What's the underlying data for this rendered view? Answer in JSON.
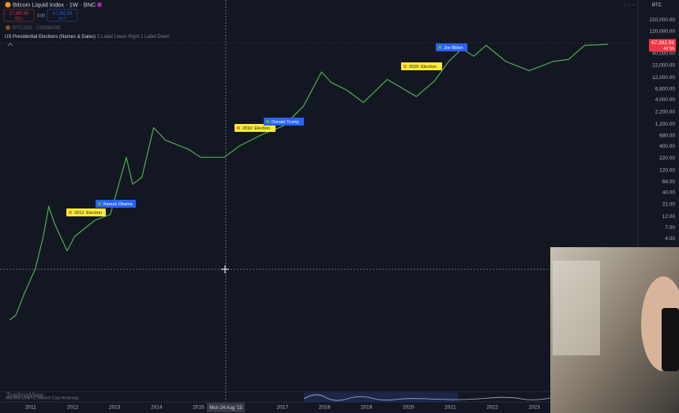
{
  "header": {
    "symbol": "Bitcoin Liquid Index · 1W · BNC",
    "sell_price": "67,382.68",
    "sell_label": "SELL",
    "spread": "0.00",
    "buy_price": "67,382.68",
    "buy_label": "BUY",
    "overlay_symbol": "BTCUSD · COINBASE",
    "indicator": "US Presidential Elections (Names & Dates)",
    "indicator_settings": "2 Label Lower Right 2 Label Down",
    "currency": "BTC"
  },
  "chart_data": {
    "type": "line",
    "log_scale": true,
    "grid": false,
    "x": [
      2010.5,
      2010.65,
      2010.83,
      2011.11,
      2011.3,
      2011.43,
      2011.58,
      2011.87,
      2012.05,
      2012.53,
      2012.9,
      2013.28,
      2013.43,
      2013.65,
      2013.93,
      2014.21,
      2014.77,
      2015.05,
      2015.61,
      2015.99,
      2016.55,
      2017.03,
      2017.5,
      2017.93,
      2018.16,
      2018.53,
      2018.93,
      2019.5,
      2019.87,
      2020.19,
      2020.62,
      2020.96,
      2021.28,
      2021.56,
      2021.85,
      2022.32,
      2022.88,
      2023.45,
      2023.82,
      2024.2,
      2024.76
    ],
    "series": [
      {
        "name": "Bitcoin Liquid Index",
        "color": "#4caf50",
        "values": [
          0.07,
          0.09,
          0.24,
          0.9,
          4.5,
          20,
          8.1,
          2.2,
          4.5,
          10,
          13.5,
          230,
          60,
          85,
          1000,
          540,
          340,
          230,
          230,
          410,
          740,
          1100,
          2900,
          16000,
          9500,
          6500,
          3500,
          11000,
          7000,
          4700,
          10200,
          27000,
          51000,
          35000,
          60000,
          27000,
          17000,
          27000,
          30000,
          60000,
          63000
        ]
      }
    ],
    "xlim": [
      2010.27,
      2025.47
    ],
    "xticks": [
      2011,
      2012,
      2013,
      2014,
      2015,
      2017,
      2018,
      2019,
      2020,
      2021,
      2022,
      2023
    ],
    "ylim": [
      0.01,
      330000
    ],
    "yticks": [
      {
        "value": 210000,
        "label": "210,000.00"
      },
      {
        "value": 120000,
        "label": "120,000.00"
      },
      {
        "value": 40000,
        "label": "40,000.00"
      },
      {
        "value": 22000,
        "label": "22,000.00"
      },
      {
        "value": 12000,
        "label": "12,000.00"
      },
      {
        "value": 6800,
        "label": "6,800.00"
      },
      {
        "value": 4000,
        "label": "4,000.00"
      },
      {
        "value": 2200,
        "label": "2,200.00"
      },
      {
        "value": 1200,
        "label": "1,200.00"
      },
      {
        "value": 680,
        "label": "680.00"
      },
      {
        "value": 400,
        "label": "400.00"
      },
      {
        "value": 220,
        "label": "220.00"
      },
      {
        "value": 120,
        "label": "120.00"
      },
      {
        "value": 68,
        "label": "68.00"
      },
      {
        "value": 40,
        "label": "40.00"
      },
      {
        "value": 22,
        "label": "22.00"
      },
      {
        "value": 12,
        "label": "12.00"
      },
      {
        "value": 7,
        "label": "7.00"
      },
      {
        "value": 4,
        "label": "4.00"
      }
    ],
    "last_price": {
      "value": 67382.56,
      "label": "67,382.56"
    },
    "last_price_countdown": "4d 5h",
    "crosshair_date": "Mon 24 Aug '15",
    "annotations": [
      "2012: Election",
      "Barack Obama",
      "2016: Election",
      "Donald Trump",
      "2020: Election",
      "Joe Biden"
    ]
  },
  "bottom_pane": {
    "logo": "TradingView",
    "indicator": "Altcoins vs BTC Market Cap Heatmap"
  }
}
